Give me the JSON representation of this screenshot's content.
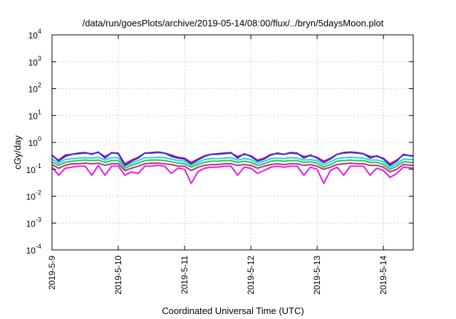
{
  "chart_data": {
    "type": "line",
    "title": "/data/run/goesPlots/archive/2019-05-14/08:00/flux/../bryn/5daysMoon.plot",
    "xlabel": "Coordinated Universal Time (UTC)",
    "ylabel": "cGy/day",
    "yscale": "log",
    "ylim": [
      0.0001,
      10000
    ],
    "xlim": [
      0,
      5.45
    ],
    "y_ticks": [
      {
        "value": 0.0001,
        "base": "10",
        "exp": "-4"
      },
      {
        "value": 0.001,
        "base": "10",
        "exp": "-3"
      },
      {
        "value": 0.01,
        "base": "10",
        "exp": "-2"
      },
      {
        "value": 0.1,
        "base": "10",
        "exp": "-1"
      },
      {
        "value": 1,
        "base": "10",
        "exp": "0"
      },
      {
        "value": 10,
        "base": "10",
        "exp": "1"
      },
      {
        "value": 100,
        "base": "10",
        "exp": "2"
      },
      {
        "value": 1000,
        "base": "10",
        "exp": "3"
      },
      {
        "value": 10000,
        "base": "10",
        "exp": "4"
      }
    ],
    "x_ticks": [
      {
        "value": 0,
        "label": "2019-5-9"
      },
      {
        "value": 1,
        "label": "2019-5-10"
      },
      {
        "value": 2,
        "label": "2019-5-11"
      },
      {
        "value": 3,
        "label": "2019-5-12"
      },
      {
        "value": 4,
        "label": "2019-5-13"
      },
      {
        "value": 5,
        "label": "2019-5-14"
      }
    ],
    "grid": true,
    "x": [
      0,
      0.1,
      0.2,
      0.3,
      0.4,
      0.5,
      0.6,
      0.7,
      0.8,
      0.9,
      1.0,
      1.1,
      1.2,
      1.3,
      1.4,
      1.5,
      1.6,
      1.7,
      1.8,
      1.9,
      2.0,
      2.1,
      2.2,
      2.3,
      2.4,
      2.5,
      2.6,
      2.7,
      2.8,
      2.9,
      3.0,
      3.1,
      3.2,
      3.3,
      3.4,
      3.5,
      3.6,
      3.7,
      3.8,
      3.9,
      4.0,
      4.1,
      4.2,
      4.3,
      4.4,
      4.5,
      4.6,
      4.7,
      4.8,
      4.9,
      5.0,
      5.1,
      5.2,
      5.3,
      5.45
    ],
    "series": [
      {
        "color": "#e8142e",
        "values": [
          0.32,
          0.22,
          0.34,
          0.36,
          0.38,
          0.4,
          0.38,
          0.42,
          0.3,
          0.4,
          0.4,
          0.16,
          0.22,
          0.28,
          0.4,
          0.4,
          0.42,
          0.4,
          0.34,
          0.28,
          0.26,
          0.18,
          0.24,
          0.32,
          0.36,
          0.36,
          0.38,
          0.4,
          0.3,
          0.36,
          0.32,
          0.22,
          0.26,
          0.36,
          0.38,
          0.36,
          0.4,
          0.38,
          0.3,
          0.32,
          0.28,
          0.2,
          0.26,
          0.36,
          0.4,
          0.42,
          0.4,
          0.38,
          0.3,
          0.3,
          0.26,
          0.16,
          0.22,
          0.34,
          0.32
        ]
      },
      {
        "color": "#2d2dfa",
        "values": [
          0.34,
          0.2,
          0.3,
          0.36,
          0.4,
          0.42,
          0.36,
          0.44,
          0.26,
          0.42,
          0.38,
          0.14,
          0.2,
          0.26,
          0.4,
          0.42,
          0.44,
          0.4,
          0.3,
          0.26,
          0.24,
          0.16,
          0.22,
          0.3,
          0.36,
          0.38,
          0.4,
          0.42,
          0.26,
          0.38,
          0.3,
          0.2,
          0.24,
          0.34,
          0.4,
          0.36,
          0.42,
          0.4,
          0.26,
          0.34,
          0.26,
          0.18,
          0.24,
          0.36,
          0.42,
          0.44,
          0.42,
          0.38,
          0.26,
          0.32,
          0.24,
          0.14,
          0.2,
          0.36,
          0.3
        ]
      },
      {
        "color": "#1fd6d6",
        "values": [
          0.24,
          0.17,
          0.23,
          0.25,
          0.26,
          0.27,
          0.26,
          0.28,
          0.22,
          0.27,
          0.27,
          0.13,
          0.17,
          0.21,
          0.27,
          0.27,
          0.28,
          0.27,
          0.24,
          0.21,
          0.2,
          0.14,
          0.18,
          0.23,
          0.25,
          0.25,
          0.26,
          0.27,
          0.22,
          0.25,
          0.23,
          0.17,
          0.2,
          0.25,
          0.26,
          0.25,
          0.27,
          0.26,
          0.22,
          0.23,
          0.21,
          0.15,
          0.19,
          0.25,
          0.27,
          0.28,
          0.27,
          0.26,
          0.22,
          0.22,
          0.19,
          0.12,
          0.16,
          0.24,
          0.23
        ]
      },
      {
        "color": "#22c455",
        "values": [
          0.19,
          0.14,
          0.18,
          0.2,
          0.21,
          0.22,
          0.21,
          0.22,
          0.18,
          0.21,
          0.21,
          0.11,
          0.14,
          0.17,
          0.21,
          0.22,
          0.22,
          0.21,
          0.19,
          0.17,
          0.16,
          0.12,
          0.15,
          0.18,
          0.2,
          0.2,
          0.21,
          0.21,
          0.18,
          0.2,
          0.18,
          0.14,
          0.16,
          0.2,
          0.21,
          0.2,
          0.21,
          0.21,
          0.18,
          0.19,
          0.17,
          0.12,
          0.15,
          0.2,
          0.21,
          0.22,
          0.21,
          0.21,
          0.18,
          0.18,
          0.15,
          0.1,
          0.13,
          0.19,
          0.18
        ]
      },
      {
        "color": "#c02a7a",
        "values": [
          0.15,
          0.11,
          0.14,
          0.16,
          0.16,
          0.17,
          0.16,
          0.17,
          0.14,
          0.16,
          0.16,
          0.09,
          0.11,
          0.13,
          0.16,
          0.17,
          0.17,
          0.16,
          0.15,
          0.13,
          0.13,
          0.09,
          0.12,
          0.14,
          0.15,
          0.15,
          0.16,
          0.16,
          0.14,
          0.15,
          0.14,
          0.11,
          0.13,
          0.15,
          0.16,
          0.15,
          0.16,
          0.16,
          0.14,
          0.15,
          0.13,
          0.1,
          0.12,
          0.15,
          0.16,
          0.17,
          0.16,
          0.16,
          0.14,
          0.14,
          0.12,
          0.08,
          0.1,
          0.15,
          0.14
        ]
      },
      {
        "color": "#e01ee6",
        "values": [
          0.12,
          0.06,
          0.11,
          0.12,
          0.13,
          0.13,
          0.06,
          0.14,
          0.06,
          0.13,
          0.13,
          0.06,
          0.08,
          0.07,
          0.13,
          0.13,
          0.14,
          0.13,
          0.07,
          0.11,
          0.1,
          0.03,
          0.08,
          0.11,
          0.12,
          0.12,
          0.13,
          0.13,
          0.06,
          0.12,
          0.11,
          0.07,
          0.09,
          0.12,
          0.13,
          0.12,
          0.13,
          0.13,
          0.06,
          0.12,
          0.1,
          0.03,
          0.09,
          0.12,
          0.06,
          0.13,
          0.13,
          0.13,
          0.06,
          0.11,
          0.09,
          0.05,
          0.07,
          0.12,
          0.11
        ]
      }
    ]
  }
}
